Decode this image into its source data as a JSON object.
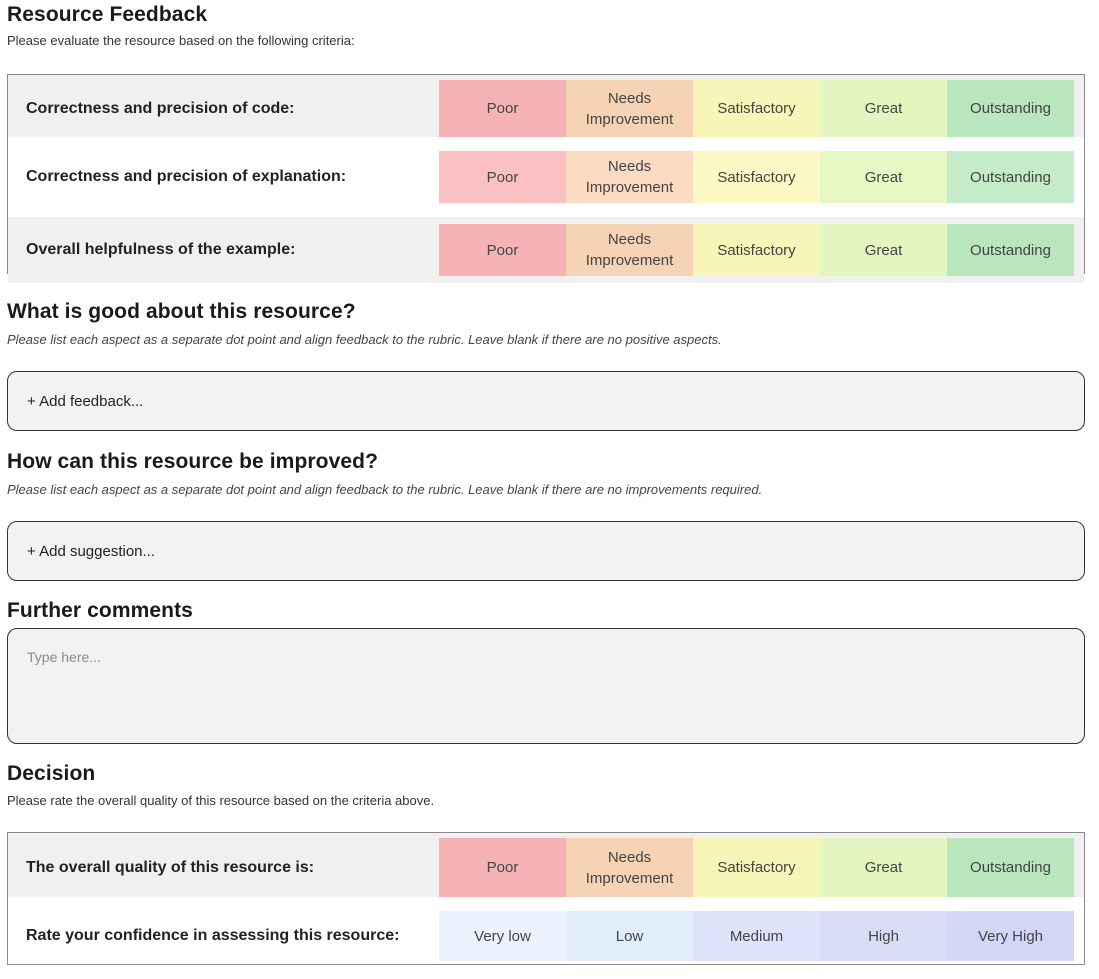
{
  "title": "Resource Feedback",
  "subtitle": "Please evaluate the resource based on the following criteria:",
  "rating_options": [
    "Poor",
    "Needs Improvement",
    "Satisfactory",
    "Great",
    "Outstanding"
  ],
  "criteria": [
    {
      "label": "Correctness and precision of code:"
    },
    {
      "label": "Correctness and precision of explanation:"
    },
    {
      "label": "Overall helpfulness of the example:"
    }
  ],
  "good": {
    "title": "What is good about this resource?",
    "instruction": "Please list each aspect as a separate dot point and align feedback to the rubric. Leave blank if there are no positive aspects.",
    "add_label": "+ Add feedback..."
  },
  "improve": {
    "title": "How can this resource be improved?",
    "instruction": "Please list each aspect as a separate dot point and align feedback to the rubric. Leave blank if there are no improvements required.",
    "add_label": "+ Add suggestion..."
  },
  "comments": {
    "title": "Further comments",
    "placeholder": "Type here..."
  },
  "decision": {
    "title": "Decision",
    "subtitle": "Please rate the overall quality of this resource based on the criteria above.",
    "quality_label": "The overall quality of this resource is:",
    "confidence_label": "Rate your confidence in assessing this resource:",
    "confidence_options": [
      "Very low",
      "Low",
      "Medium",
      "High",
      "Very High"
    ]
  },
  "colors": {
    "poor": "#f5b3b5",
    "needs_improvement": "#f6d3b4",
    "satisfactory": "#f7f5b7",
    "great": "#e3f6c0",
    "outstanding": "#b9e6bd"
  }
}
